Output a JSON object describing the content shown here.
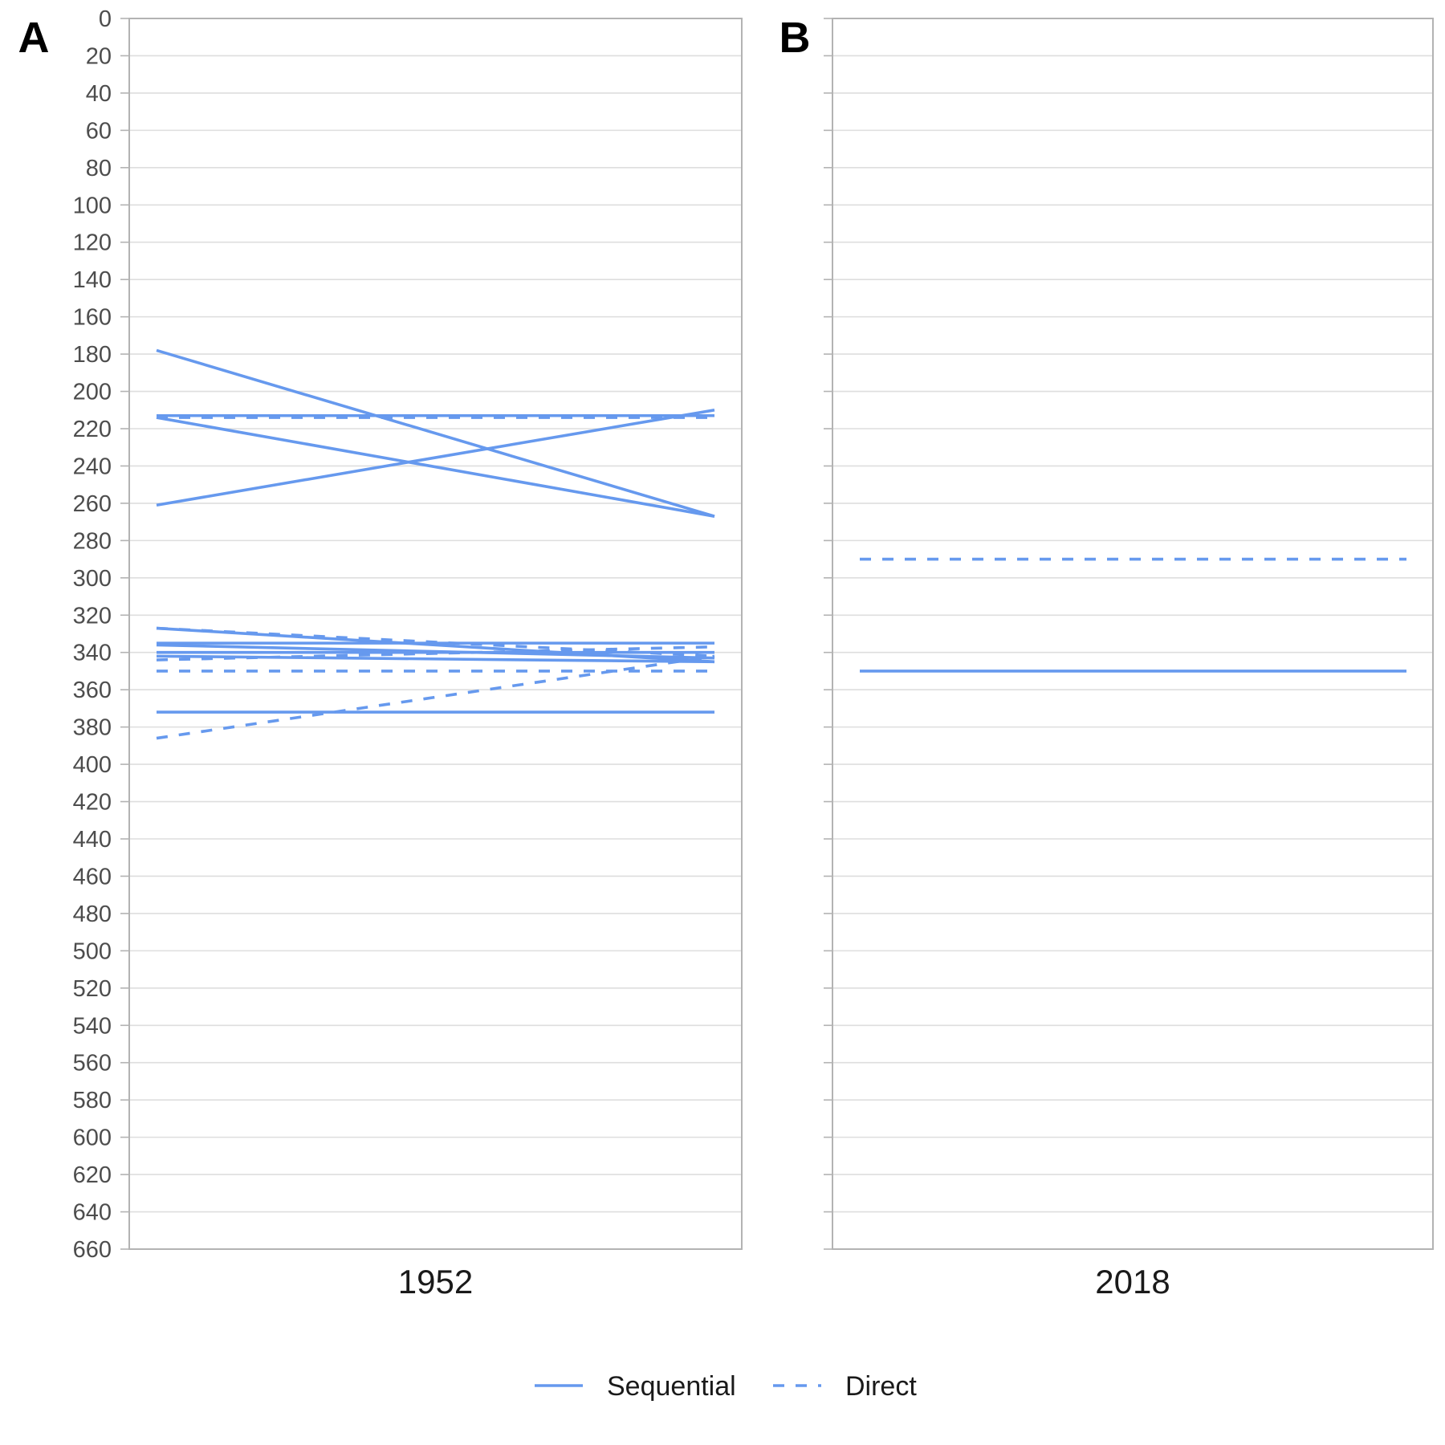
{
  "colors": {
    "series": "#6699ee",
    "grid": "#dedede",
    "frame": "#b3b3b3",
    "tick_text": "#4d4d4d"
  },
  "legend": {
    "placement": "bottom-center",
    "items": [
      {
        "label": "Sequential",
        "style": "solid"
      },
      {
        "label": "Direct",
        "style": "dashed"
      }
    ]
  },
  "chart_data": [
    {
      "type": "line",
      "panel_label": "A",
      "x_category": "1952",
      "ylim": [
        0,
        660
      ],
      "y_reversed": true,
      "y_tick_step": 20,
      "y_tick_labels_shown": true,
      "grid": true,
      "segments": [
        {
          "style": "solid",
          "y_start": 178,
          "y_end": 267
        },
        {
          "style": "solid",
          "y_start": 214,
          "y_end": 267
        },
        {
          "style": "solid",
          "y_start": 261,
          "y_end": 210
        },
        {
          "style": "solid",
          "y_start": 213,
          "y_end": 213
        },
        {
          "style": "dashed",
          "y_start": 214,
          "y_end": 214
        },
        {
          "style": "solid",
          "y_start": 327,
          "y_end": 345
        },
        {
          "style": "dashed",
          "y_start": 327,
          "y_end": 342
        },
        {
          "style": "solid",
          "y_start": 335,
          "y_end": 335
        },
        {
          "style": "solid",
          "y_start": 336,
          "y_end": 343
        },
        {
          "style": "solid",
          "y_start": 340,
          "y_end": 340
        },
        {
          "style": "solid",
          "y_start": 342,
          "y_end": 345
        },
        {
          "style": "dashed",
          "y_start": 344,
          "y_end": 337
        },
        {
          "style": "dashed",
          "y_start": 350,
          "y_end": 350
        },
        {
          "style": "solid",
          "y_start": 372,
          "y_end": 372
        },
        {
          "style": "dashed",
          "y_start": 386,
          "y_end": 342
        }
      ]
    },
    {
      "type": "line",
      "panel_label": "B",
      "x_category": "2018",
      "ylim": [
        0,
        660
      ],
      "y_reversed": true,
      "y_tick_step": 20,
      "y_tick_labels_shown": false,
      "grid": true,
      "segments": [
        {
          "style": "dashed",
          "y_start": 290,
          "y_end": 290
        },
        {
          "style": "solid",
          "y_start": 350,
          "y_end": 350
        }
      ]
    }
  ]
}
